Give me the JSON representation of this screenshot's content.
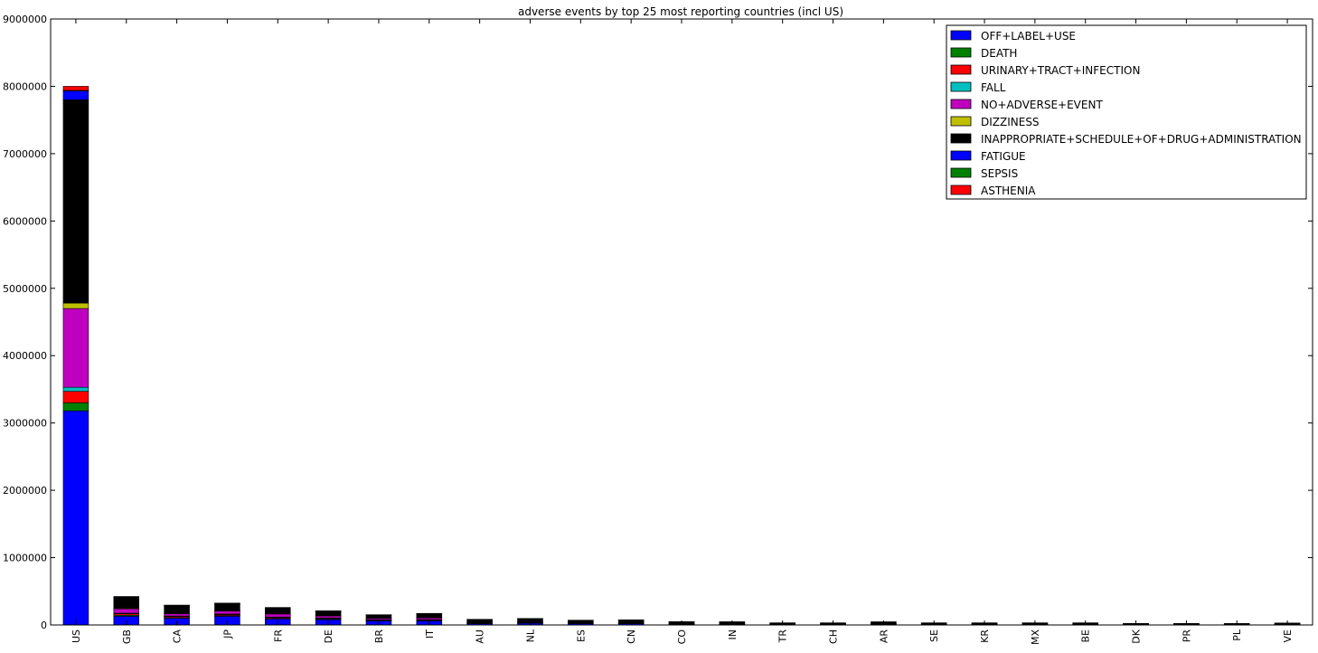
{
  "chart_data": {
    "type": "bar",
    "stacked": true,
    "title": "adverse events by top 25 most reporting countries (incl US)",
    "xlabel": "",
    "ylabel": "",
    "ylim": [
      0,
      9000000
    ],
    "yticks": [
      0,
      1000000,
      2000000,
      3000000,
      4000000,
      5000000,
      6000000,
      7000000,
      8000000,
      9000000
    ],
    "grid": false,
    "legend_position": "top-right",
    "categories": [
      "US",
      "GB",
      "CA",
      "JP",
      "FR",
      "DE",
      "BR",
      "IT",
      "AU",
      "NL",
      "ES",
      "CN",
      "CO",
      "IN",
      "TR",
      "CH",
      "AR",
      "SE",
      "KR",
      "MX",
      "BE",
      "DK",
      "PR",
      "PL",
      "VE"
    ],
    "series": [
      {
        "name": "OFF+LABEL+USE",
        "color": "#0000ff",
        "values": [
          3180000,
          130000,
          100000,
          130000,
          90000,
          80000,
          60000,
          60000,
          20000,
          25000,
          20000,
          20000,
          10000,
          10000,
          8000,
          8000,
          10000,
          8000,
          8000,
          8000,
          8000,
          5000,
          5000,
          5000,
          5000
        ]
      },
      {
        "name": "DEATH",
        "color": "#008000",
        "values": [
          120000,
          15000,
          10000,
          10000,
          10000,
          10000,
          8000,
          8000,
          5000,
          5000,
          5000,
          5000,
          3000,
          3000,
          2000,
          2000,
          3000,
          2000,
          2000,
          2000,
          2000,
          1500,
          1500,
          1500,
          2000
        ]
      },
      {
        "name": "URINARY+TRACT+INFECTION",
        "color": "#ff0000",
        "values": [
          170000,
          20000,
          15000,
          15000,
          12000,
          10000,
          8000,
          8000,
          5000,
          5000,
          4000,
          4000,
          3000,
          3000,
          2000,
          2000,
          3000,
          2000,
          2000,
          2000,
          2000,
          1500,
          1500,
          1500,
          2000
        ]
      },
      {
        "name": "FALL",
        "color": "#00bfbf",
        "values": [
          60000,
          10000,
          8000,
          8000,
          6000,
          5000,
          4000,
          4000,
          3000,
          3000,
          2000,
          2000,
          2000,
          2000,
          1000,
          1000,
          1000,
          1000,
          1000,
          1000,
          1000,
          1000,
          1000,
          1000,
          1000
        ]
      },
      {
        "name": "NO+ADVERSE+EVENT",
        "color": "#bf00bf",
        "values": [
          1170000,
          65000,
          35000,
          45000,
          45000,
          30000,
          20000,
          25000,
          8000,
          10000,
          8000,
          8000,
          5000,
          5000,
          3000,
          3000,
          5000,
          3000,
          3000,
          3000,
          3000,
          2000,
          2000,
          2000,
          3000
        ]
      },
      {
        "name": "DIZZINESS",
        "color": "#bfbf00",
        "values": [
          80000,
          10000,
          8000,
          8000,
          6000,
          6000,
          5000,
          5000,
          3000,
          3000,
          3000,
          3000,
          2000,
          2000,
          1000,
          1000,
          2000,
          1000,
          1000,
          1000,
          1000,
          1000,
          1000,
          1000,
          1000
        ]
      },
      {
        "name": "INAPPROPRIATE+SCHEDULE+OF+DRUG+ADMINISTRATION",
        "color": "#000000",
        "values": [
          3020000,
          155000,
          105000,
          95000,
          80000,
          60000,
          40000,
          55000,
          35000,
          40000,
          25000,
          30000,
          20000,
          18000,
          12000,
          12000,
          18000,
          12000,
          12000,
          12000,
          12000,
          8000,
          8000,
          8000,
          12000
        ]
      },
      {
        "name": "FATIGUE",
        "color": "#0000ff",
        "values": [
          130000,
          10000,
          8000,
          8000,
          6000,
          5000,
          4000,
          4000,
          3000,
          3000,
          2000,
          2000,
          2000,
          2000,
          1000,
          1000,
          2000,
          1000,
          1000,
          1000,
          1000,
          1000,
          1000,
          1000,
          1000
        ]
      },
      {
        "name": "SEPSIS",
        "color": "#008000",
        "values": [
          10000,
          3000,
          2000,
          2000,
          2000,
          2000,
          1000,
          1000,
          1000,
          1000,
          1000,
          1000,
          1000,
          1000,
          500,
          500,
          1000,
          500,
          500,
          500,
          500,
          500,
          500,
          500,
          500
        ]
      },
      {
        "name": "ASTHENIA",
        "color": "#ff0000",
        "values": [
          60000,
          5000,
          4000,
          4000,
          3000,
          3000,
          2000,
          2000,
          1000,
          1000,
          1000,
          1000,
          1000,
          1000,
          500,
          500,
          1000,
          500,
          500,
          500,
          500,
          500,
          500,
          500,
          500
        ]
      }
    ]
  }
}
